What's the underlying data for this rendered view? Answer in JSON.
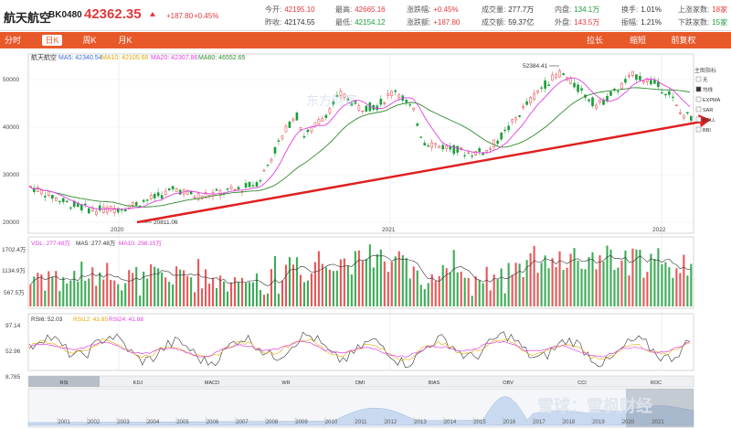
{
  "header": {
    "name": "航天航空",
    "code": "BK0480",
    "price": "42362.35",
    "change": "+187.80",
    "change_pct": "+0.45%"
  },
  "quotes": {
    "open_label": "今开:",
    "open": "42195.10",
    "prev_close_label": "昨收:",
    "prev_close": "42174.55",
    "high_label": "最高:",
    "high": "42665.16",
    "low_label": "最低:",
    "low": "42154.12",
    "pct_label": "涨跌幅:",
    "pct": "+0.45%",
    "chg_label": "涨跌额:",
    "chg": "+187.80",
    "vol_label": "成交量:",
    "vol": "277.7万",
    "amount_label": "成交额:",
    "amount": "59.37亿",
    "inner_label": "内盘:",
    "inner": "134.1万",
    "outer_label": "外盘:",
    "outer": "143.5万",
    "turnover_label": "换手:",
    "turnover": "1.01%",
    "amplitude_label": "振幅:",
    "amplitude": "1.21%",
    "up_label": "上涨家数:",
    "up": "18家",
    "down_label": "下跌家数:",
    "down": "15家"
  },
  "tabs": {
    "intraday": "分时",
    "daily": "日K",
    "weekly": "周K",
    "monthly": "月K",
    "stretch": "拉长",
    "shorten": "缩短",
    "adjust": "前复权"
  },
  "ma_legend": {
    "name": "航天航空",
    "ma5": "MA5: 42340.54",
    "ma10": "MA10: 42105.66",
    "ma20": "MA20: 42307.86",
    "ma60": "MA60: 46552.65"
  },
  "indicator_panel": {
    "title": "主图指标",
    "items": [
      "无",
      "均线",
      "EXPMA",
      "SAR",
      "BOLL",
      "BBI"
    ],
    "checked": "均线"
  },
  "price_axis": {
    "ticks": [
      "50000",
      "40000",
      "30000",
      "20000"
    ]
  },
  "annotations": {
    "high": "52384.41",
    "low": "20811.06"
  },
  "year_labels": [
    "2020",
    "2021",
    "2022"
  ],
  "volume": {
    "legend_vol": "VOL: 277.48万",
    "legend_ma5": "MA5: 277.48万",
    "legend_ma10": "MA10: 298.15万",
    "ticks": [
      "1702.4万",
      "1134.9万",
      "567.5万"
    ]
  },
  "rsi": {
    "legend_rsi6": "RSI6: 52.03",
    "legend_rsi12": "RSI12: 43.85",
    "legend_rsi24": "RSI24: 41.88",
    "ticks": [
      "97.14",
      "52.96",
      "8.785"
    ]
  },
  "indicator_tabs": [
    "RSI",
    "KDJ",
    "MACD",
    "WR",
    "DMI",
    "BIAS",
    "OBV",
    "CCI",
    "ROC"
  ],
  "overview_years": [
    "2001",
    "2002",
    "2003",
    "2004",
    "2005",
    "2006",
    "2007",
    "2008",
    "2009",
    "2010",
    "2011",
    "2012",
    "2013",
    "2014",
    "2015",
    "2016",
    "2017",
    "2018",
    "2019",
    "2020",
    "2021"
  ],
  "watermark": {
    "top": "东方财富",
    "bottom": "雪球：雪枫财经"
  },
  "colors": {
    "up": "#e4393c",
    "down": "#1a9d3a",
    "accent": "#e8592a",
    "ma5": "#3b6fd4",
    "ma10": "#e0a800",
    "ma20": "#e040e0",
    "ma60": "#2e8b2e"
  }
}
